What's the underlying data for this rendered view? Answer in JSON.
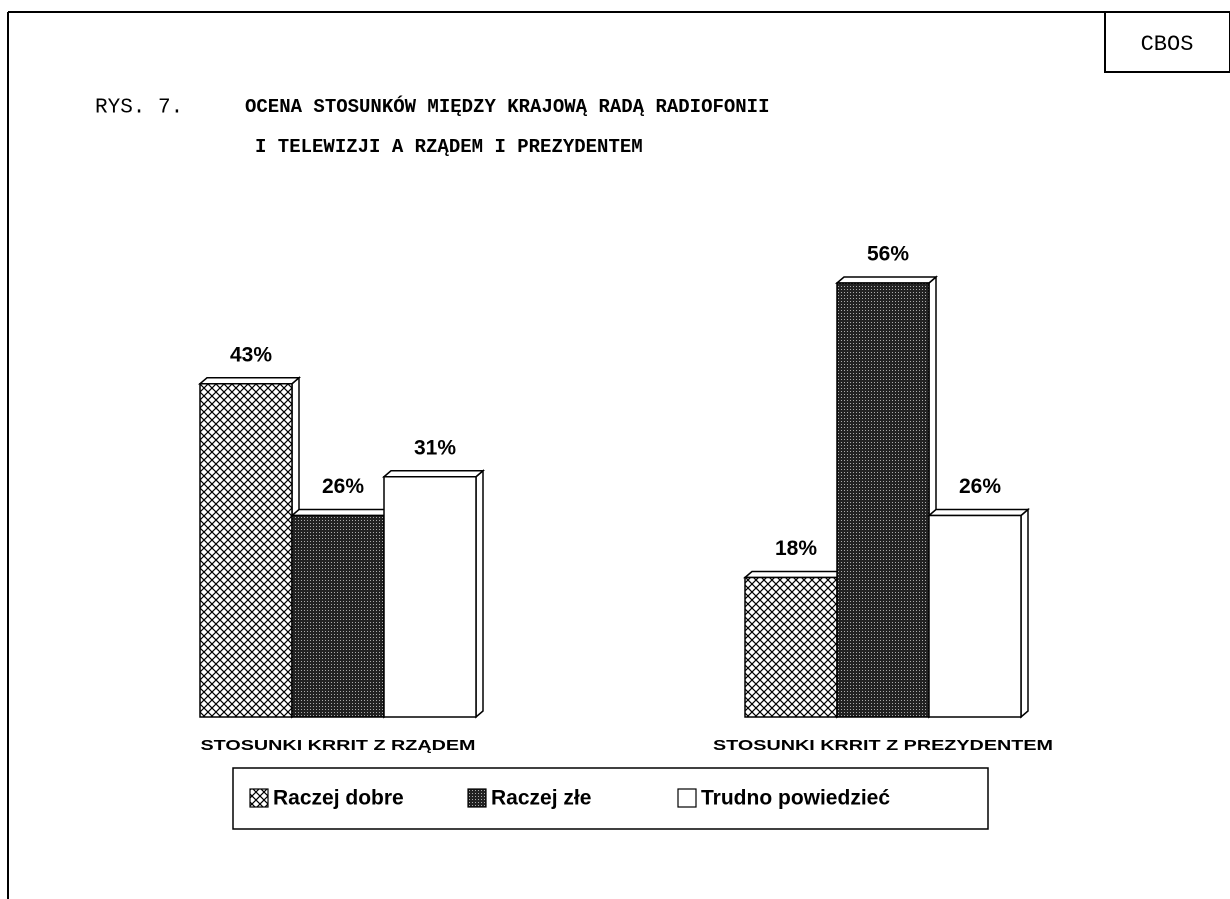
{
  "chart_data": {
    "type": "bar",
    "source": "CBOS",
    "title_prefix": "RYS. 7.",
    "title": [
      "OCENA STOSUNKÓW MIĘDZY KRAJOWĄ RADĄ RADIOFONII",
      "I TELEWIZJI A RZĄDEM I PREZYDENTEM"
    ],
    "categories": [
      "STOSUNKI KRRIT Z RZĄDEM",
      "STOSUNKI KRRIT Z PREZYDENTEM"
    ],
    "series": [
      {
        "name": "Raczej dobre",
        "pattern": "crosshatch",
        "color": "#000000",
        "values": [
          43,
          18
        ],
        "value_labels": [
          "43%",
          "18%"
        ]
      },
      {
        "name": "Raczej złe",
        "pattern": "dense",
        "color": "#000000",
        "values": [
          26,
          56
        ],
        "value_labels": [
          "26%",
          "56%"
        ]
      },
      {
        "name": "Trudno powiedzieć",
        "pattern": "none",
        "color": "#ffffff",
        "values": [
          31,
          26
        ],
        "value_labels": [
          "31%",
          "26%"
        ]
      }
    ]
  }
}
